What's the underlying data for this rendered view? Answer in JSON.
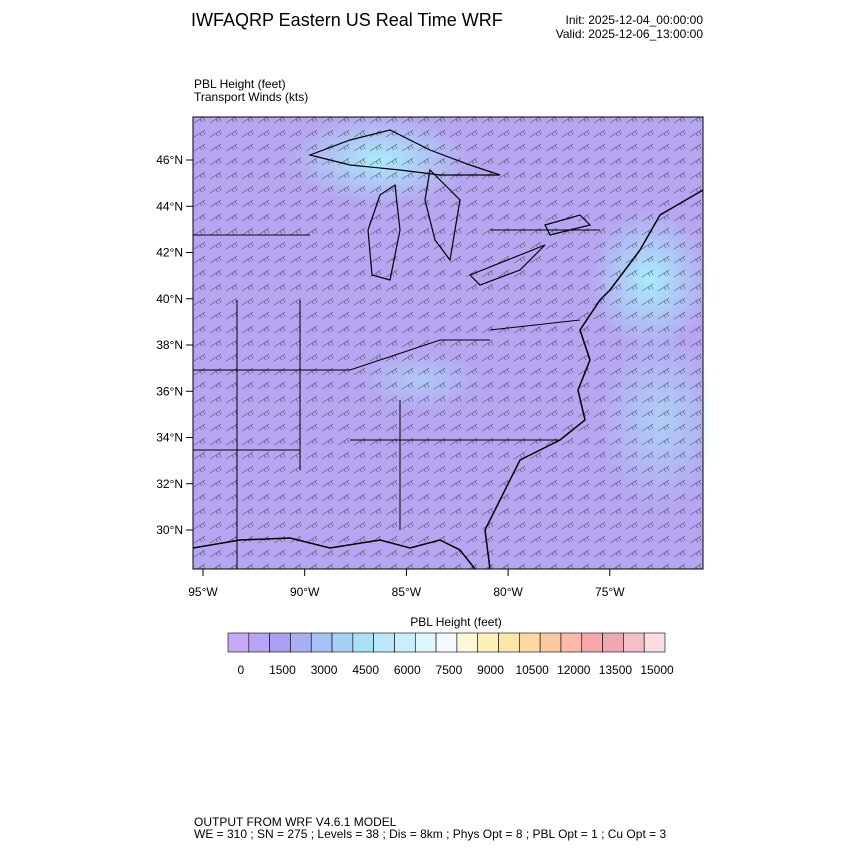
{
  "header": {
    "title": "IWFAQRP Eastern US Real Time WRF",
    "init": "Init: 2025-12-04_00:00:00",
    "valid": "Valid: 2025-12-06_13:00:00"
  },
  "plot": {
    "field_label": "PBL Height   (feet)",
    "wind_label": "Transport Winds   (kts)",
    "lat_labels": [
      "46°N",
      "44°N",
      "42°N",
      "40°N",
      "38°N",
      "36°N",
      "34°N",
      "32°N",
      "30°N"
    ],
    "lon_labels": [
      "95°W",
      "90°W",
      "85°W",
      "80°W",
      "75°W"
    ]
  },
  "colorbar": {
    "title": "PBL Height  (feet)",
    "labels": [
      "0",
      "1500",
      "3000",
      "4500",
      "6000",
      "7500",
      "9000",
      "10500",
      "12000",
      "13500",
      "15000"
    ],
    "colors": [
      "#c9a8f5",
      "#b8a4f5",
      "#a8a0f3",
      "#a8b0f5",
      "#a8c0f5",
      "#a8d0f5",
      "#a8e0f8",
      "#b8e8fa",
      "#c8f0fc",
      "#ddf6fc",
      "#f5fbfd",
      "#fdf8d8",
      "#fdf0b8",
      "#fde6a8",
      "#fdd8a0",
      "#fcc8a0",
      "#fcb8a8",
      "#f8a8a8",
      "#f0a8b0",
      "#f4c0c8",
      "#fadde0"
    ]
  },
  "footer": {
    "line1": "OUTPUT FROM WRF V4.6.1 MODEL",
    "line2": "WE = 310 ; SN = 275 ; Levels = 38 ; Dis = 8km ; Phys Opt = 8 ; PBL Opt = 1 ; Cu Opt = 3"
  }
}
